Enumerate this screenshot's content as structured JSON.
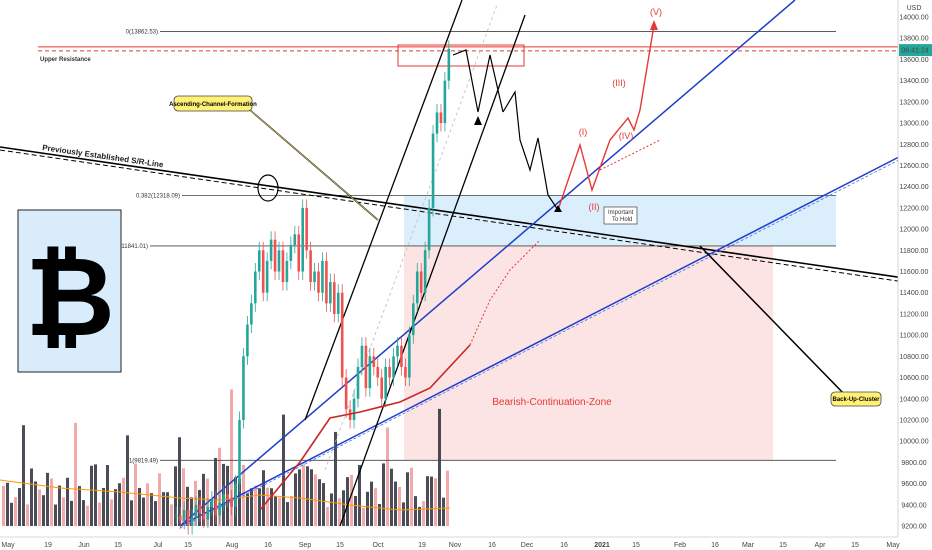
{
  "chart_data": {
    "type": "candlestick",
    "symbol": "BTCUSD",
    "currency_label": "USD",
    "price_axis": {
      "min": 9140,
      "max": 14200,
      "ticks": [
        9200,
        9400,
        9600,
        9800,
        10000,
        10200,
        10400,
        10600,
        10800,
        11000,
        11200,
        11400,
        11600,
        11800,
        12000,
        12200,
        12400,
        12600,
        12800,
        13000,
        13200,
        13400,
        13600,
        13800,
        14000
      ],
      "current_price_label": "06:41:24",
      "current_price": 13650
    },
    "time_axis": {
      "labels": [
        "May",
        "19",
        "Jun",
        "15",
        "Jul",
        "15",
        "Aug",
        "16",
        "Sep",
        "15",
        "Oct",
        "19",
        "Nov",
        "16",
        "Dec",
        "16",
        "2021",
        "15",
        "Feb",
        "16",
        "Mar",
        "15",
        "Apr",
        "15",
        "May"
      ]
    },
    "fib_levels": [
      {
        "ratio_label": "0(13862.53)",
        "price": 13862.53
      },
      {
        "ratio_label": "0.382(12318.09)",
        "price": 12318.09
      },
      {
        "ratio_label": "0.5(11841.01)",
        "price": 11841.01
      },
      {
        "ratio_label": "1(9819.49)",
        "price": 9819.49
      }
    ],
    "upper_resistance": {
      "label": "Upper Resistance",
      "price": 13700
    },
    "annotations": {
      "ascending_channel": "Ascending-Channel-Formation",
      "previous_sr": "Previously Established S/R-Line",
      "bearish_zone": "Bearish-Continuation-Zone",
      "back_up_cluster": "Back-Up-Cluster",
      "important_hold": [
        "Important",
        "To Hold"
      ]
    },
    "wave_labels": [
      "(I)",
      "(II)",
      "(III)",
      "(IV)",
      "(V)"
    ],
    "colors": {
      "up": "#26a69a",
      "down": "#ef5350",
      "volume": "#2a2e39",
      "resistance": "#e53935",
      "trend_blue": "#1e3fcc",
      "callout_fill": "#fff176",
      "zone_blue": "#dbeefc",
      "zone_red": "#fde4e4",
      "logo_bg": "#d8ecfb"
    },
    "logo_icon": "bitcoin-logo"
  }
}
